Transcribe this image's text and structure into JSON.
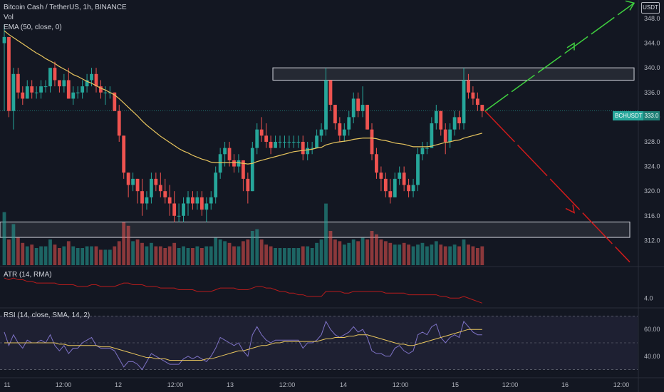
{
  "header": {
    "symbol_line": "Bitcoin Cash / TetherUS, 1h, BINANCE",
    "volume_label": "Vol",
    "ema_label": "EMA (50, close, 0)"
  },
  "currency_badge": "USDT",
  "price_tag": {
    "symbol": "BCHUSDT",
    "price": "333.0"
  },
  "atr_label": "ATR (14, RMA)",
  "rsi_label": "RSI (14, close, SMA, 14, 2)",
  "colors": {
    "up": "#26a69a",
    "down": "#ef5350",
    "ema": "#e8c55e",
    "atr": "#b71c1c",
    "rsi": "#7e72c6",
    "rsi_ma": "#e8c55e",
    "arrow_up": "#3fd03f",
    "arrow_down": "#d11b1b",
    "background": "#131722"
  },
  "chart_data": [
    {
      "type": "candlestick",
      "name": "price",
      "ylim": [
        308,
        351
      ],
      "y_ticks": [
        312,
        316,
        320,
        324,
        328,
        332,
        336,
        340,
        344,
        348
      ],
      "x_tick_labels": [
        "11",
        "12:00",
        "12",
        "12:00",
        "13",
        "12:00",
        "14",
        "12:00",
        "15",
        "12:00",
        "16",
        "12:00"
      ],
      "candles": [
        {
          "o": 344,
          "h": 347,
          "l": 333,
          "c": 345
        },
        {
          "o": 345,
          "h": 345,
          "l": 332,
          "c": 333
        },
        {
          "o": 333,
          "h": 340,
          "l": 330,
          "c": 339
        },
        {
          "o": 339,
          "h": 340,
          "l": 335,
          "c": 336
        },
        {
          "o": 336,
          "h": 337,
          "l": 334,
          "c": 335
        },
        {
          "o": 335,
          "h": 338,
          "l": 335,
          "c": 337
        },
        {
          "o": 337,
          "h": 338,
          "l": 335,
          "c": 336
        },
        {
          "o": 336,
          "h": 337,
          "l": 335,
          "c": 336
        },
        {
          "o": 336,
          "h": 338,
          "l": 335,
          "c": 337
        },
        {
          "o": 337,
          "h": 338,
          "l": 336,
          "c": 337
        },
        {
          "o": 337,
          "h": 340,
          "l": 336,
          "c": 340
        },
        {
          "o": 340,
          "h": 341,
          "l": 337,
          "c": 338
        },
        {
          "o": 338,
          "h": 338,
          "l": 336,
          "c": 337
        },
        {
          "o": 337,
          "h": 339,
          "l": 336,
          "c": 338
        },
        {
          "o": 338,
          "h": 340,
          "l": 335,
          "c": 335
        },
        {
          "o": 335,
          "h": 337,
          "l": 334,
          "c": 336
        },
        {
          "o": 336,
          "h": 337,
          "l": 335,
          "c": 336
        },
        {
          "o": 336,
          "h": 338,
          "l": 335,
          "c": 337
        },
        {
          "o": 337,
          "h": 339,
          "l": 336,
          "c": 338
        },
        {
          "o": 338,
          "h": 340,
          "l": 337,
          "c": 339
        },
        {
          "o": 339,
          "h": 340,
          "l": 336,
          "c": 337
        },
        {
          "o": 337,
          "h": 338,
          "l": 335,
          "c": 336
        },
        {
          "o": 336,
          "h": 337,
          "l": 334,
          "c": 336
        },
        {
          "o": 336,
          "h": 337,
          "l": 335,
          "c": 336
        },
        {
          "o": 336,
          "h": 336,
          "l": 333,
          "c": 333
        },
        {
          "o": 333,
          "h": 334,
          "l": 328,
          "c": 329
        },
        {
          "o": 329,
          "h": 329,
          "l": 322,
          "c": 323
        },
        {
          "o": 323,
          "h": 323,
          "l": 319,
          "c": 321
        },
        {
          "o": 321,
          "h": 323,
          "l": 320,
          "c": 322
        },
        {
          "o": 322,
          "h": 322,
          "l": 318,
          "c": 320
        },
        {
          "o": 320,
          "h": 322,
          "l": 316,
          "c": 318
        },
        {
          "o": 318,
          "h": 320,
          "l": 317,
          "c": 319
        },
        {
          "o": 319,
          "h": 323,
          "l": 318,
          "c": 322
        },
        {
          "o": 322,
          "h": 323,
          "l": 320,
          "c": 321
        },
        {
          "o": 321,
          "h": 323,
          "l": 319,
          "c": 320
        },
        {
          "o": 320,
          "h": 322,
          "l": 318,
          "c": 319
        },
        {
          "o": 319,
          "h": 321,
          "l": 316,
          "c": 318
        },
        {
          "o": 318,
          "h": 320,
          "l": 315,
          "c": 316
        },
        {
          "o": 316,
          "h": 318,
          "l": 315,
          "c": 316
        },
        {
          "o": 316,
          "h": 319,
          "l": 315,
          "c": 318
        },
        {
          "o": 318,
          "h": 320,
          "l": 316,
          "c": 319
        },
        {
          "o": 319,
          "h": 320,
          "l": 317,
          "c": 318
        },
        {
          "o": 318,
          "h": 320,
          "l": 317,
          "c": 319
        },
        {
          "o": 319,
          "h": 320,
          "l": 316,
          "c": 317
        },
        {
          "o": 317,
          "h": 319,
          "l": 315,
          "c": 318
        },
        {
          "o": 318,
          "h": 320,
          "l": 317,
          "c": 319
        },
        {
          "o": 319,
          "h": 324,
          "l": 318,
          "c": 323
        },
        {
          "o": 323,
          "h": 327,
          "l": 322,
          "c": 326
        },
        {
          "o": 326,
          "h": 328,
          "l": 324,
          "c": 327
        },
        {
          "o": 327,
          "h": 328,
          "l": 324,
          "c": 325
        },
        {
          "o": 325,
          "h": 326,
          "l": 323,
          "c": 324
        },
        {
          "o": 324,
          "h": 326,
          "l": 323,
          "c": 325
        },
        {
          "o": 325,
          "h": 325,
          "l": 320,
          "c": 322
        },
        {
          "o": 322,
          "h": 323,
          "l": 318,
          "c": 320
        },
        {
          "o": 320,
          "h": 328,
          "l": 320,
          "c": 327
        },
        {
          "o": 327,
          "h": 331,
          "l": 326,
          "c": 330
        },
        {
          "o": 330,
          "h": 332,
          "l": 328,
          "c": 329
        },
        {
          "o": 329,
          "h": 331,
          "l": 327,
          "c": 328
        },
        {
          "o": 328,
          "h": 329,
          "l": 326,
          "c": 327
        },
        {
          "o": 327,
          "h": 329,
          "l": 327,
          "c": 328
        },
        {
          "o": 328,
          "h": 329,
          "l": 327,
          "c": 328
        },
        {
          "o": 328,
          "h": 329,
          "l": 327,
          "c": 328
        },
        {
          "o": 328,
          "h": 329,
          "l": 327,
          "c": 328
        },
        {
          "o": 328,
          "h": 329,
          "l": 327,
          "c": 328
        },
        {
          "o": 328,
          "h": 329,
          "l": 327,
          "c": 328
        },
        {
          "o": 328,
          "h": 329,
          "l": 325,
          "c": 326
        },
        {
          "o": 326,
          "h": 328,
          "l": 325,
          "c": 327
        },
        {
          "o": 327,
          "h": 328,
          "l": 326,
          "c": 327
        },
        {
          "o": 327,
          "h": 330,
          "l": 327,
          "c": 329
        },
        {
          "o": 329,
          "h": 331,
          "l": 328,
          "c": 330
        },
        {
          "o": 330,
          "h": 340,
          "l": 329,
          "c": 338
        },
        {
          "o": 338,
          "h": 338,
          "l": 333,
          "c": 334
        },
        {
          "o": 334,
          "h": 334,
          "l": 330,
          "c": 331
        },
        {
          "o": 331,
          "h": 332,
          "l": 328,
          "c": 329
        },
        {
          "o": 329,
          "h": 331,
          "l": 328,
          "c": 330
        },
        {
          "o": 330,
          "h": 333,
          "l": 329,
          "c": 332
        },
        {
          "o": 332,
          "h": 336,
          "l": 331,
          "c": 335
        },
        {
          "o": 335,
          "h": 336,
          "l": 332,
          "c": 333
        },
        {
          "o": 333,
          "h": 337,
          "l": 332,
          "c": 334
        },
        {
          "o": 334,
          "h": 334,
          "l": 330,
          "c": 330
        },
        {
          "o": 330,
          "h": 331,
          "l": 325,
          "c": 326
        },
        {
          "o": 326,
          "h": 327,
          "l": 322,
          "c": 323
        },
        {
          "o": 323,
          "h": 324,
          "l": 320,
          "c": 322
        },
        {
          "o": 322,
          "h": 323,
          "l": 319,
          "c": 320
        },
        {
          "o": 320,
          "h": 322,
          "l": 318,
          "c": 319
        },
        {
          "o": 319,
          "h": 323,
          "l": 319,
          "c": 322
        },
        {
          "o": 322,
          "h": 324,
          "l": 321,
          "c": 323
        },
        {
          "o": 323,
          "h": 324,
          "l": 320,
          "c": 321
        },
        {
          "o": 321,
          "h": 322,
          "l": 319,
          "c": 320
        },
        {
          "o": 320,
          "h": 322,
          "l": 319,
          "c": 321
        },
        {
          "o": 321,
          "h": 327,
          "l": 320,
          "c": 326
        },
        {
          "o": 326,
          "h": 328,
          "l": 325,
          "c": 327
        },
        {
          "o": 327,
          "h": 328,
          "l": 326,
          "c": 327
        },
        {
          "o": 327,
          "h": 332,
          "l": 327,
          "c": 331
        },
        {
          "o": 331,
          "h": 334,
          "l": 330,
          "c": 333
        },
        {
          "o": 333,
          "h": 333,
          "l": 329,
          "c": 330
        },
        {
          "o": 330,
          "h": 331,
          "l": 326,
          "c": 328
        },
        {
          "o": 328,
          "h": 331,
          "l": 327,
          "c": 330
        },
        {
          "o": 330,
          "h": 333,
          "l": 329,
          "c": 332
        },
        {
          "o": 332,
          "h": 333,
          "l": 330,
          "c": 331
        },
        {
          "o": 331,
          "h": 340,
          "l": 330,
          "c": 338
        },
        {
          "o": 338,
          "h": 339,
          "l": 335,
          "c": 336
        },
        {
          "o": 336,
          "h": 337,
          "l": 334,
          "c": 335
        },
        {
          "o": 335,
          "h": 336,
          "l": 333,
          "c": 334
        },
        {
          "o": 334,
          "h": 334,
          "l": 332,
          "c": 333
        }
      ]
    },
    {
      "type": "line",
      "name": "ema",
      "values": [
        346,
        345.4,
        344.9,
        344.4,
        343.9,
        343.4,
        342.9,
        342.4,
        342.0,
        341.5,
        341.1,
        340.7,
        340.2,
        339.8,
        339.4,
        338.9,
        338.6,
        338.2,
        337.8,
        337.5,
        337.1,
        336.7,
        336.4,
        336.0,
        335.6,
        335.0,
        334.3,
        333.6,
        332.9,
        332.2,
        331.4,
        330.7,
        330.1,
        329.5,
        328.9,
        328.4,
        327.9,
        327.4,
        326.9,
        326.5,
        326.2,
        325.8,
        325.5,
        325.2,
        325.0,
        324.7,
        324.6,
        324.6,
        324.6,
        324.6,
        324.6,
        324.6,
        324.5,
        324.4,
        324.5,
        324.8,
        325.0,
        325.2,
        325.4,
        325.6,
        325.8,
        326.0,
        326.2,
        326.4,
        326.5,
        326.6,
        326.7,
        326.8,
        327.0,
        327.1,
        327.5,
        327.7,
        327.9,
        328.0,
        328.1,
        328.2,
        328.4,
        328.5,
        328.6,
        328.6,
        328.6,
        328.5,
        328.3,
        328.2,
        328.0,
        327.8,
        327.7,
        327.6,
        327.4,
        327.2,
        327.2,
        327.2,
        327.2,
        327.3,
        327.5,
        327.7,
        327.9,
        328.0,
        328.2,
        328.3,
        328.6,
        328.8,
        329.0,
        329.2,
        329.4
      ]
    },
    {
      "type": "bar",
      "name": "volume",
      "values": [
        62,
        30,
        48,
        32,
        26,
        22,
        24,
        20,
        22,
        22,
        30,
        24,
        20,
        22,
        28,
        22,
        20,
        20,
        22,
        22,
        22,
        18,
        18,
        18,
        22,
        28,
        50,
        46,
        28,
        30,
        26,
        22,
        26,
        22,
        22,
        20,
        22,
        26,
        20,
        22,
        20,
        20,
        22,
        20,
        22,
        22,
        32,
        30,
        28,
        26,
        22,
        22,
        28,
        30,
        40,
        42,
        30,
        24,
        22,
        20,
        20,
        20,
        20,
        20,
        20,
        22,
        22,
        20,
        26,
        30,
        72,
        40,
        30,
        28,
        24,
        26,
        30,
        28,
        32,
        30,
        40,
        36,
        30,
        28,
        26,
        24,
        24,
        26,
        24,
        22,
        24,
        26,
        22,
        24,
        28,
        24,
        22,
        22,
        24,
        22,
        30,
        24,
        22,
        20,
        22
      ],
      "ylim": [
        0,
        100
      ]
    },
    {
      "type": "line",
      "name": "atr",
      "values": [
        5.2,
        5.1,
        5.2,
        5.1,
        5.1,
        5.0,
        5.0,
        4.9,
        4.9,
        4.9,
        4.9,
        4.9,
        4.8,
        4.8,
        4.8,
        4.8,
        4.7,
        4.7,
        4.7,
        4.8,
        4.8,
        4.7,
        4.7,
        4.7,
        4.7,
        4.8,
        4.9,
        4.9,
        4.8,
        4.8,
        4.8,
        4.7,
        4.7,
        4.7,
        4.6,
        4.6,
        4.6,
        4.6,
        4.5,
        4.5,
        4.5,
        4.5,
        4.4,
        4.4,
        4.4,
        4.4,
        4.5,
        4.6,
        4.6,
        4.6,
        4.6,
        4.5,
        4.5,
        4.5,
        4.6,
        4.7,
        4.7,
        4.6,
        4.6,
        4.5,
        4.4,
        4.4,
        4.3,
        4.3,
        4.2,
        4.2,
        4.1,
        4.1,
        4.1,
        4.1,
        4.4,
        4.4,
        4.4,
        4.4,
        4.3,
        4.3,
        4.4,
        4.4,
        4.4,
        4.4,
        4.4,
        4.4,
        4.4,
        4.3,
        4.3,
        4.3,
        4.3,
        4.3,
        4.2,
        4.2,
        4.2,
        4.2,
        4.2,
        4.2,
        4.2,
        4.1,
        4.1,
        4.0,
        4.0,
        4.0,
        4.1,
        4.0,
        3.9,
        3.8,
        3.7
      ],
      "y_tick": 4.0,
      "ylim": [
        3.5,
        5.8
      ]
    },
    {
      "type": "line",
      "name": "rsi",
      "values": [
        58,
        48,
        56,
        50,
        46,
        52,
        50,
        50,
        52,
        50,
        56,
        48,
        44,
        48,
        42,
        46,
        46,
        50,
        52,
        54,
        48,
        46,
        46,
        46,
        44,
        38,
        32,
        36,
        36,
        34,
        30,
        36,
        42,
        40,
        38,
        36,
        34,
        34,
        34,
        38,
        40,
        38,
        40,
        38,
        36,
        40,
        46,
        54,
        52,
        50,
        48,
        50,
        44,
        40,
        56,
        62,
        56,
        52,
        50,
        52,
        52,
        52,
        52,
        52,
        52,
        46,
        50,
        50,
        52,
        56,
        66,
        60,
        56,
        54,
        56,
        58,
        62,
        58,
        60,
        54,
        44,
        42,
        42,
        40,
        40,
        46,
        48,
        44,
        42,
        44,
        56,
        58,
        56,
        62,
        64,
        54,
        50,
        54,
        56,
        54,
        66,
        62,
        58,
        56,
        56
      ],
      "ma_values": [
        50,
        50,
        50,
        50,
        50,
        50,
        50,
        50,
        50,
        50,
        50,
        50,
        49,
        49,
        48,
        48,
        48,
        48,
        48,
        48,
        48,
        47,
        47,
        47,
        46,
        45,
        44,
        43,
        42,
        41,
        40,
        39,
        39,
        38,
        38,
        38,
        37,
        37,
        37,
        37,
        37,
        37,
        37,
        37,
        38,
        38,
        39,
        40,
        41,
        42,
        43,
        44,
        44,
        45,
        46,
        47,
        48,
        48,
        49,
        50,
        50,
        51,
        51,
        51,
        51,
        51,
        51,
        51,
        51,
        52,
        53,
        53,
        54,
        54,
        54,
        55,
        55,
        56,
        56,
        56,
        55,
        54,
        53,
        52,
        51,
        50,
        49,
        49,
        48,
        48,
        49,
        50,
        51,
        52,
        53,
        54,
        55,
        56,
        57,
        58,
        59,
        60,
        60,
        60,
        60
      ],
      "y_ticks": [
        40.0,
        60.0
      ],
      "ylim": [
        25,
        75
      ]
    }
  ]
}
